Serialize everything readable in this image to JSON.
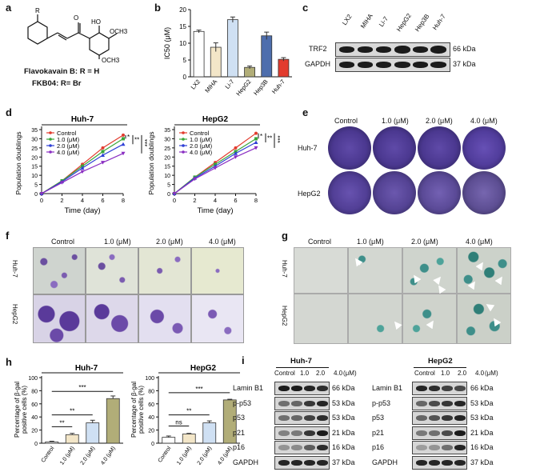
{
  "panels": [
    "a",
    "b",
    "c",
    "d",
    "e",
    "f",
    "g",
    "h",
    "i"
  ],
  "a": {
    "substituent": "R",
    "oh": "HO",
    "och3_top": "OCH3",
    "och3_bottom": "OCH3",
    "o": "O",
    "line1": "Flavokavain B: R = H",
    "line2": "FKB04: R= Br"
  },
  "b": {
    "ylabel": "IC50 (μM)",
    "yticks": [
      "0",
      "5",
      "10",
      "15",
      "20"
    ]
  },
  "c": {
    "lanes": [
      "LX2",
      "MIHA",
      "Li-7",
      "HepG2",
      "Hep3B",
      "Huh-7"
    ],
    "rows": [
      {
        "name": "TRF2",
        "kda": "66 kDa"
      },
      {
        "name": "GAPDH",
        "kda": "37 kDa"
      }
    ]
  },
  "d": {
    "charts": [
      {
        "title": "Huh-7",
        "sig": [
          "*",
          "**",
          "***"
        ]
      },
      {
        "title": "HepG2",
        "sig": [
          "*",
          "**",
          "***"
        ]
      }
    ],
    "legend": [
      "Control",
      "1.0 (μM)",
      "2.0 (μM)",
      "4.0 (μM)"
    ],
    "colors": [
      "#e23b2e",
      "#3aa63a",
      "#2e3fd6",
      "#8a2ec2"
    ],
    "xlabel": "Time (day)",
    "ylabel": "Population doublings",
    "xticks": [
      "0",
      "2",
      "4",
      "6",
      "8"
    ],
    "yticks": [
      "0",
      "5",
      "10",
      "15",
      "20",
      "25",
      "30",
      "35"
    ]
  },
  "e": {
    "cols": [
      "Control",
      "1.0 (μM)",
      "2.0 (μM)",
      "4.0 (μM)"
    ],
    "rows": [
      "Huh-7",
      "HepG2"
    ]
  },
  "f": {
    "cols": [
      "Control",
      "1.0 (μM)",
      "2.0 (μM)",
      "4.0 (μM)"
    ],
    "rows": [
      "Huh-7",
      "HepG2"
    ]
  },
  "g": {
    "cols": [
      "Control",
      "1.0 (μM)",
      "2.0 (μM)",
      "4.0 (μM)"
    ],
    "rows": [
      "Huh-7",
      "HepG2"
    ]
  },
  "h": {
    "ylabel_1": "Percentage of β-gal",
    "ylabel_2": "positive cells (%)",
    "xticks": [
      "Control",
      "1.0 (μM)",
      "2.0 (μM)",
      "4.0 (μM)"
    ],
    "charts": [
      {
        "title": "Huh-7",
        "sig": [
          "**",
          "**",
          "***"
        ]
      },
      {
        "title": "HepG2",
        "sig": [
          "ns",
          "**",
          "***"
        ]
      }
    ],
    "yticks": [
      "0",
      "20",
      "40",
      "60",
      "80",
      "100"
    ]
  },
  "i": {
    "blots": [
      {
        "title": "Huh-7",
        "units": "(μM)"
      },
      {
        "title": "HepG2",
        "units": "(μM)"
      }
    ],
    "lanes": [
      "Control",
      "1.0",
      "2.0",
      "4.0"
    ],
    "rows": [
      {
        "name": "Lamin B1",
        "kda": "66 kDa"
      },
      {
        "name": "p-p53",
        "kda": "53 kDa"
      },
      {
        "name": "p53",
        "kda": "53 kDa"
      },
      {
        "name": "p21",
        "kda": "21 kDa"
      },
      {
        "name": "p16",
        "kda": "16 kDa"
      },
      {
        "name": "GAPDH",
        "kda": "37 kDa"
      }
    ]
  },
  "chart_data": [
    {
      "type": "bar",
      "panel": "b",
      "categories": [
        "LX2",
        "MIHA",
        "Li-7",
        "HepG2",
        "Hep3B",
        "Huh-7"
      ],
      "values": [
        13.5,
        8.8,
        17.0,
        2.8,
        12.2,
        5.2
      ],
      "errors": [
        0.4,
        1.3,
        0.8,
        0.4,
        1.1,
        0.5
      ],
      "colors": [
        "#ffffff",
        "#f3e6c8",
        "#cfe0f3",
        "#b1ad78",
        "#4e6ead",
        "#e23b2e"
      ],
      "ylim": [
        0,
        20
      ],
      "ylabel": "IC50 (μM)"
    },
    {
      "type": "line",
      "panel": "d",
      "title": "Huh-7",
      "x": [
        0,
        2,
        4,
        6,
        8
      ],
      "ylim": [
        0,
        35
      ],
      "series": [
        {
          "name": "Control",
          "values": [
            0,
            7,
            16,
            25,
            32
          ]
        },
        {
          "name": "1.0 (μM)",
          "values": [
            0,
            7,
            15,
            23,
            30
          ]
        },
        {
          "name": "2.0 (μM)",
          "values": [
            0,
            6.5,
            14,
            21,
            27
          ]
        },
        {
          "name": "4.0 (μM)",
          "values": [
            0,
            6,
            12,
            17,
            22
          ]
        }
      ]
    },
    {
      "type": "line",
      "panel": "d",
      "title": "HepG2",
      "x": [
        0,
        2,
        4,
        6,
        8
      ],
      "ylim": [
        0,
        35
      ],
      "series": [
        {
          "name": "Control",
          "values": [
            0,
            9,
            17,
            25,
            33
          ]
        },
        {
          "name": "1.0 (μM)",
          "values": [
            0,
            9,
            16,
            23,
            30
          ]
        },
        {
          "name": "2.0 (μM)",
          "values": [
            0,
            8.5,
            15,
            22,
            28
          ]
        },
        {
          "name": "4.0 (μM)",
          "values": [
            0,
            8,
            14,
            20,
            25
          ]
        }
      ]
    },
    {
      "type": "bar",
      "panel": "h",
      "title": "Huh-7",
      "categories": [
        "Control",
        "1.0 (μM)",
        "2.0 (μM)",
        "4.0 (μM)"
      ],
      "values": [
        2,
        13,
        31,
        68
      ],
      "errors": [
        1,
        2,
        4,
        4
      ],
      "colors": [
        "#ffffff",
        "#f3e6c8",
        "#cfe0f3",
        "#b1ad78"
      ],
      "ylim": [
        0,
        100
      ]
    },
    {
      "type": "bar",
      "panel": "h",
      "title": "HepG2",
      "categories": [
        "Control",
        "1.0 (μM)",
        "2.0 (μM)",
        "4.0 (μM)"
      ],
      "values": [
        9,
        14,
        31,
        66
      ],
      "errors": [
        2,
        1,
        3,
        1
      ],
      "colors": [
        "#ffffff",
        "#f3e6c8",
        "#cfe0f3",
        "#b1ad78"
      ],
      "ylim": [
        0,
        100
      ]
    }
  ]
}
